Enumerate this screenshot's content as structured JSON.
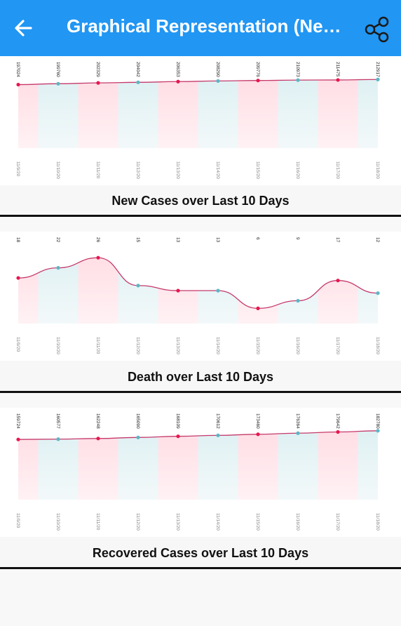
{
  "header": {
    "title": "Graphical Representation (New...",
    "back_icon": "arrow-left-icon",
    "share_icon": "share-icon"
  },
  "colors": {
    "appbar": "#2196f3",
    "red_point": "#e8174e",
    "teal_point": "#5bb7c4",
    "line": "#c5396b"
  },
  "dates": [
    "11/9/20",
    "11/10/20",
    "11/11/20",
    "11/12/20",
    "11/13/20",
    "11/14/20",
    "11/15/20",
    "11/16/20",
    "11/17/20",
    "11/18/20"
  ],
  "chart_data": [
    {
      "type": "line",
      "caption": "New Cases over Last 10 Days",
      "x": [
        "11/9/20",
        "11/10/20",
        "11/11/20",
        "11/12/20",
        "11/13/20",
        "11/14/20",
        "11/15/20",
        "11/16/20",
        "11/17/20",
        "11/18/20"
      ],
      "values": [
        197024,
        199760,
        202329,
        204042,
        206353,
        208290,
        209776,
        210973,
        211475,
        212917
      ],
      "labels": [
        "197024",
        "199760",
        "202329",
        "204042",
        "206353",
        "208290",
        "209776",
        "210973",
        "211475",
        "212917"
      ],
      "ylim": [
        0,
        220000
      ]
    },
    {
      "type": "line",
      "caption": "Death over Last 10 Days",
      "x": [
        "11/9/20",
        "11/10/20",
        "11/11/20",
        "11/12/20",
        "11/13/20",
        "11/14/20",
        "11/15/20",
        "11/16/20",
        "11/17/20",
        "11/18/20"
      ],
      "values": [
        18,
        22,
        26,
        15,
        13,
        13,
        6,
        9,
        17,
        12
      ],
      "labels": [
        "18",
        "22",
        "26",
        "15",
        "13",
        "13",
        "6",
        "9",
        "17",
        "12"
      ],
      "ylim": [
        0,
        28
      ]
    },
    {
      "type": "line",
      "caption": "Recovered Cases over Last 10 Days",
      "x": [
        "11/9/20",
        "11/10/20",
        "11/11/20",
        "11/12/20",
        "11/13/20",
        "11/14/20",
        "11/15/20",
        "11/16/20",
        "11/17/20",
        "11/18/20"
      ],
      "values": [
        159724,
        160577,
        162248,
        165090,
        168109,
        170612,
        173460,
        176364,
        179642,
        182780
      ],
      "labels": [
        "159724",
        "160577",
        "162248",
        "165090",
        "168109",
        "170612",
        "173460",
        "176364",
        "179642",
        "182780"
      ],
      "ylim": [
        0,
        188000
      ]
    }
  ]
}
